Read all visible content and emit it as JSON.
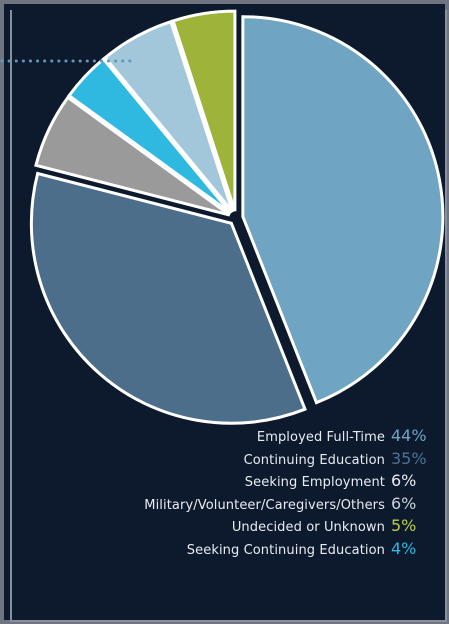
{
  "chart_data": {
    "type": "pie",
    "title": "",
    "slices": [
      {
        "label": "Employed Full-Time",
        "value": 44,
        "display": "44%",
        "color": "#6fa4c2",
        "label_color": "#6fa4c2"
      },
      {
        "label": "Continuing Education",
        "value": 35,
        "display": "35%",
        "color": "#4c6e8a",
        "label_color": "#4e7391"
      },
      {
        "label": "Seeking Employment",
        "value": 6,
        "display": "6%",
        "color": "#9a9a9a",
        "label_color": "#e8ecf1"
      },
      {
        "label": "Seeking Continuing Education",
        "value": 4,
        "display": "4%",
        "color": "#2fb8e0",
        "label_color": "#2fb8e0"
      },
      {
        "label": "Military/Volunteer/Caregivers/Others",
        "value": 6,
        "display": "6%",
        "color": "#a2c6da",
        "label_color": "#c9d0d8"
      },
      {
        "label": "Undecided or Unknown",
        "value": 5,
        "display": "5%",
        "color": "#9db33a",
        "label_color": "#b9d046"
      }
    ],
    "legend_order": [
      0,
      1,
      2,
      4,
      5,
      3
    ],
    "legend_placement": "bottom-right"
  }
}
